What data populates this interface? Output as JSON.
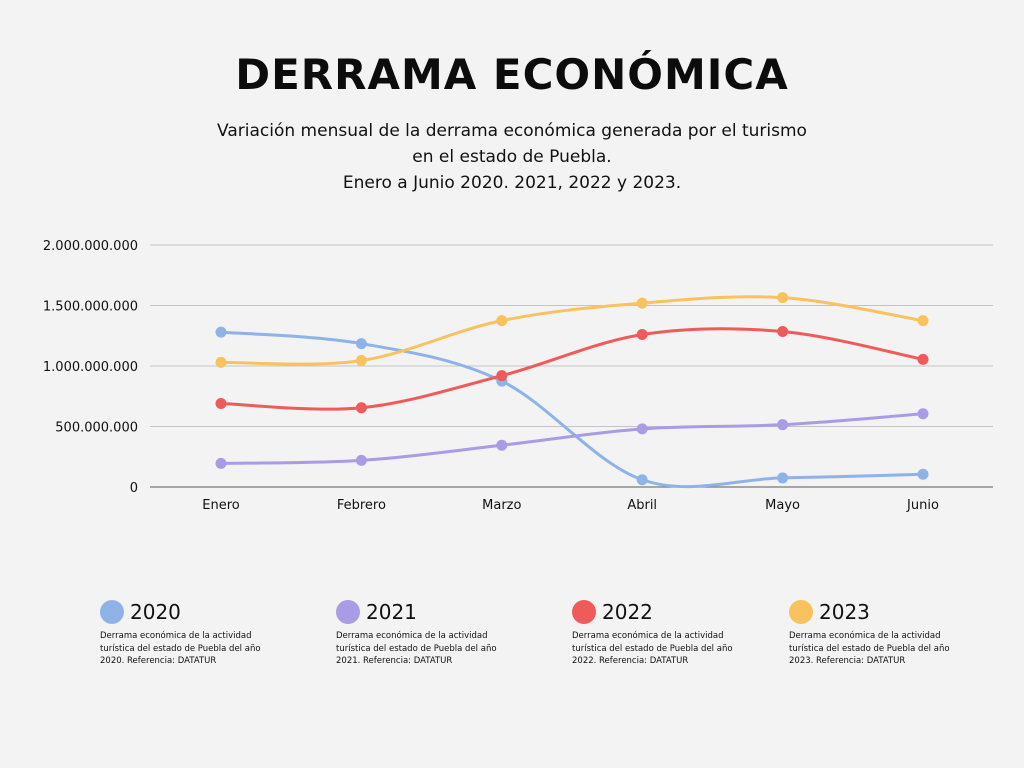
{
  "title": "DERRAMA ECONÓMICA",
  "subtitle_lines": [
    "Variación mensual de la derrama económica generada por el turismo",
    "en el estado de Puebla.",
    "Enero a Junio 2020. 2021, 2022 y 2023."
  ],
  "chart_data": {
    "type": "line",
    "categories": [
      "Enero",
      "Febrero",
      "Marzo",
      "Abril",
      "Mayo",
      "Junio"
    ],
    "ylim": [
      0,
      2000000000
    ],
    "yticks": [
      0,
      500000000,
      1000000000,
      1500000000,
      2000000000
    ],
    "ytick_labels": [
      "0",
      "500.000.000",
      "1.000.000.000",
      "1.500.000.000",
      "2.000.000.000"
    ],
    "grid": true,
    "series": [
      {
        "name": "2020",
        "color": "#8fb3e6",
        "values": [
          1280000000,
          1185000000,
          875000000,
          60000000,
          75000000,
          105000000
        ]
      },
      {
        "name": "2021",
        "color": "#a99be4",
        "values": [
          195000000,
          220000000,
          345000000,
          480000000,
          515000000,
          605000000
        ]
      },
      {
        "name": "2022",
        "color": "#ef5a5a",
        "values": [
          690000000,
          655000000,
          920000000,
          1260000000,
          1285000000,
          1055000000
        ]
      },
      {
        "name": "2023",
        "color": "#f9c25e",
        "values": [
          1030000000,
          1045000000,
          1375000000,
          1520000000,
          1565000000,
          1375000000
        ]
      }
    ]
  },
  "legend": [
    {
      "year": "2020",
      "color": "#8fb3e6",
      "description": "Derrama económica de la actividad turística del estado de Puebla del año 2020. Referencia: DATATUR"
    },
    {
      "year": "2021",
      "color": "#a99be4",
      "description": "Derrama económica de la actividad turística del estado de Puebla del año 2021. Referencia: DATATUR"
    },
    {
      "year": "2022",
      "color": "#ef5a5a",
      "description": "Derrama económica de la actividad turística del estado de Puebla del año 2022. Referencia: DATATUR"
    },
    {
      "year": "2023",
      "color": "#f9c25e",
      "description": "Derrama económica de la actividad turística del estado de Puebla del año 2023. Referencia: DATATUR"
    }
  ]
}
